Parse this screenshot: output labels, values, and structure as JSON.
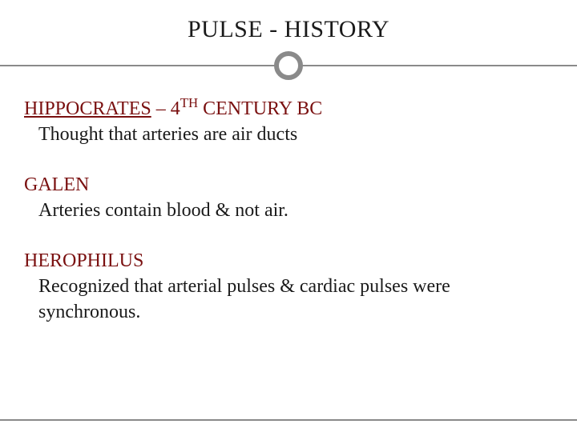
{
  "title": "PULSE - HISTORY",
  "colors": {
    "heading_color": "#7a1010",
    "body_color": "#1a1a1a",
    "line_color": "#8a8a8a",
    "background": "#ffffff"
  },
  "typography": {
    "title_fontsize": 30,
    "body_fontsize": 24,
    "font_family": "Georgia, Times New Roman, serif"
  },
  "divider": {
    "line_thickness": 2,
    "circle_diameter": 36,
    "circle_border": 6
  },
  "entries": [
    {
      "name": "HIPPOCRATES",
      "suffix_pre": " – 4",
      "suffix_sup": "TH",
      "suffix_post": " CENTURY BC",
      "description": "Thought that arteries are air ducts"
    },
    {
      "name": "GALEN",
      "suffix_pre": "",
      "suffix_sup": "",
      "suffix_post": "",
      "description": "Arteries contain blood & not air."
    },
    {
      "name": "HEROPHILUS",
      "suffix_pre": "",
      "suffix_sup": "",
      "suffix_post": "",
      "description": "Recognized that arterial pulses & cardiac pulses were synchronous."
    }
  ]
}
